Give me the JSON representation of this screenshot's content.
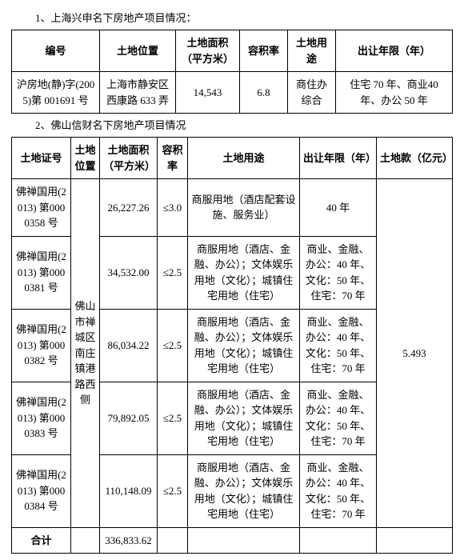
{
  "section1": {
    "title": "1、上海兴申名下房地产项目情况：",
    "headers": {
      "id": "编号",
      "location": "土地位置",
      "area": "土地面积（平方米）",
      "far": "容积率",
      "use": "土地用途",
      "term": "出让年限（年）"
    },
    "row": {
      "id": "沪房地(静)字(2005)第 001691 号",
      "location": "上海市静安区西康路 633 弄",
      "area": "14,543",
      "far": "6.8",
      "use": "商住办综合",
      "term": "住宅 70 年、商业40 年、办公 50 年"
    }
  },
  "section2": {
    "title": "2、佛山信财名下房地产项目情况",
    "headers": {
      "id": "土地证号",
      "location": "土地位置",
      "area": "土地面积（平方米）",
      "far": "容积率",
      "use": "土地用途",
      "term": "出让年限（年）",
      "price": "土地款（亿元）"
    },
    "location_merged": "佛山市禅城区南庄镇港路西侧",
    "price_merged": "5.493",
    "rows": [
      {
        "id": "佛禅国用(2013) 第0000358 号",
        "area": "26,227.26",
        "far": "≤3.0",
        "use": "商服用地（酒店配套设施、服务业）",
        "term": "40 年"
      },
      {
        "id": "佛禅国用(2013) 第0000381 号",
        "area": "34,532.00",
        "far": "≤2.5",
        "use": "商服用地（酒店、金融、办公）；文体娱乐用地（文化）；城镇住宅用地（住宅）",
        "term": "商业、金融、办公：40 年、文化：50 年、住宅：70 年"
      },
      {
        "id": "佛禅国用(2013) 第0000382 号",
        "area": "86,034.22",
        "far": "≤2.5",
        "use": "商服用地（酒店、金融、办公）；文体娱乐用地（文化）；城镇住宅用地（住宅）",
        "term": "商业、金融、办公：40 年、文化：50 年、住宅：70 年"
      },
      {
        "id": "佛禅国用(2013) 第0000383 号",
        "area": "79,892.05",
        "far": "≤2.5",
        "use": "商服用地（酒店、金融、办公）；文体娱乐用地（文化）；城镇住宅用地（住宅）",
        "term": "商业、金融、办公：40 年、文化：50 年、住宅：70 年"
      },
      {
        "id": "佛禅国用(2013) 第0000384 号",
        "area": "110,148.09",
        "far": "≤2.5",
        "use": "商服用地（酒店、金融、办公）；文体娱乐用地（文化）；城镇住宅用地（住宅）",
        "term": "商业、金融、办公：40 年、文化：50 年、住宅：70 年"
      }
    ],
    "total": {
      "label": "合计",
      "area": "336,833.62"
    }
  }
}
